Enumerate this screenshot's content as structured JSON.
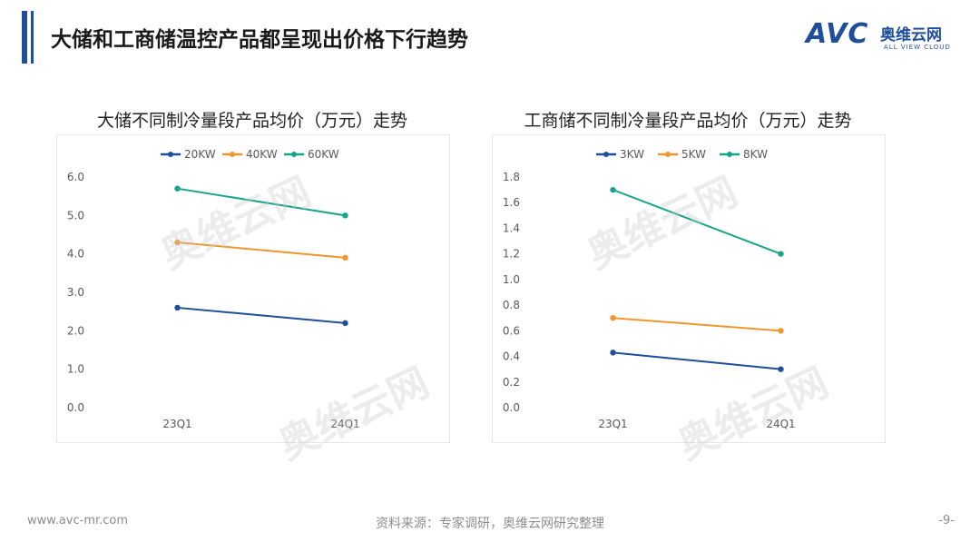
{
  "header": {
    "title": "大储和工商储温控产品都呈现出价格下行趋势"
  },
  "logo": {
    "mark": "AVC",
    "cn": "奥维云网",
    "en": "ALL VIEW CLOUD"
  },
  "watermark": {
    "text": "奥维云网"
  },
  "footer": {
    "website": "www.avc-mr.com",
    "source": "资料来源：专家调研，奥维云网研究整理",
    "page": "-9-"
  },
  "chart_data": [
    {
      "type": "line",
      "title": "大储不同制冷量段产品均价（万元）走势",
      "categories": [
        "23Q1",
        "24Q1"
      ],
      "ylim": [
        0,
        6
      ],
      "yticks": [
        "0.0",
        "1.0",
        "2.0",
        "3.0",
        "4.0",
        "5.0",
        "6.0"
      ],
      "grid": false,
      "legend": "top",
      "series": [
        {
          "name": "20KW",
          "color": "#1f4e9b",
          "values": [
            2.6,
            2.2
          ]
        },
        {
          "name": "40KW",
          "color": "#f0962e",
          "values": [
            4.3,
            3.9
          ]
        },
        {
          "name": "60KW",
          "color": "#17a589",
          "values": [
            5.7,
            5.0
          ]
        }
      ]
    },
    {
      "type": "line",
      "title": "工商储不同制冷量段产品均价（万元）走势",
      "categories": [
        "23Q1",
        "24Q1"
      ],
      "ylim": [
        0,
        1.8
      ],
      "yticks": [
        "0.0",
        "0.2",
        "0.4",
        "0.6",
        "0.8",
        "1.0",
        "1.2",
        "1.4",
        "1.6",
        "1.8"
      ],
      "grid": false,
      "legend": "top",
      "series": [
        {
          "name": "3KW",
          "color": "#1f4e9b",
          "values": [
            0.43,
            0.3
          ]
        },
        {
          "name": "5KW",
          "color": "#f0962e",
          "values": [
            0.7,
            0.6
          ]
        },
        {
          "name": "8KW",
          "color": "#17a589",
          "values": [
            1.7,
            1.2
          ]
        }
      ]
    }
  ]
}
